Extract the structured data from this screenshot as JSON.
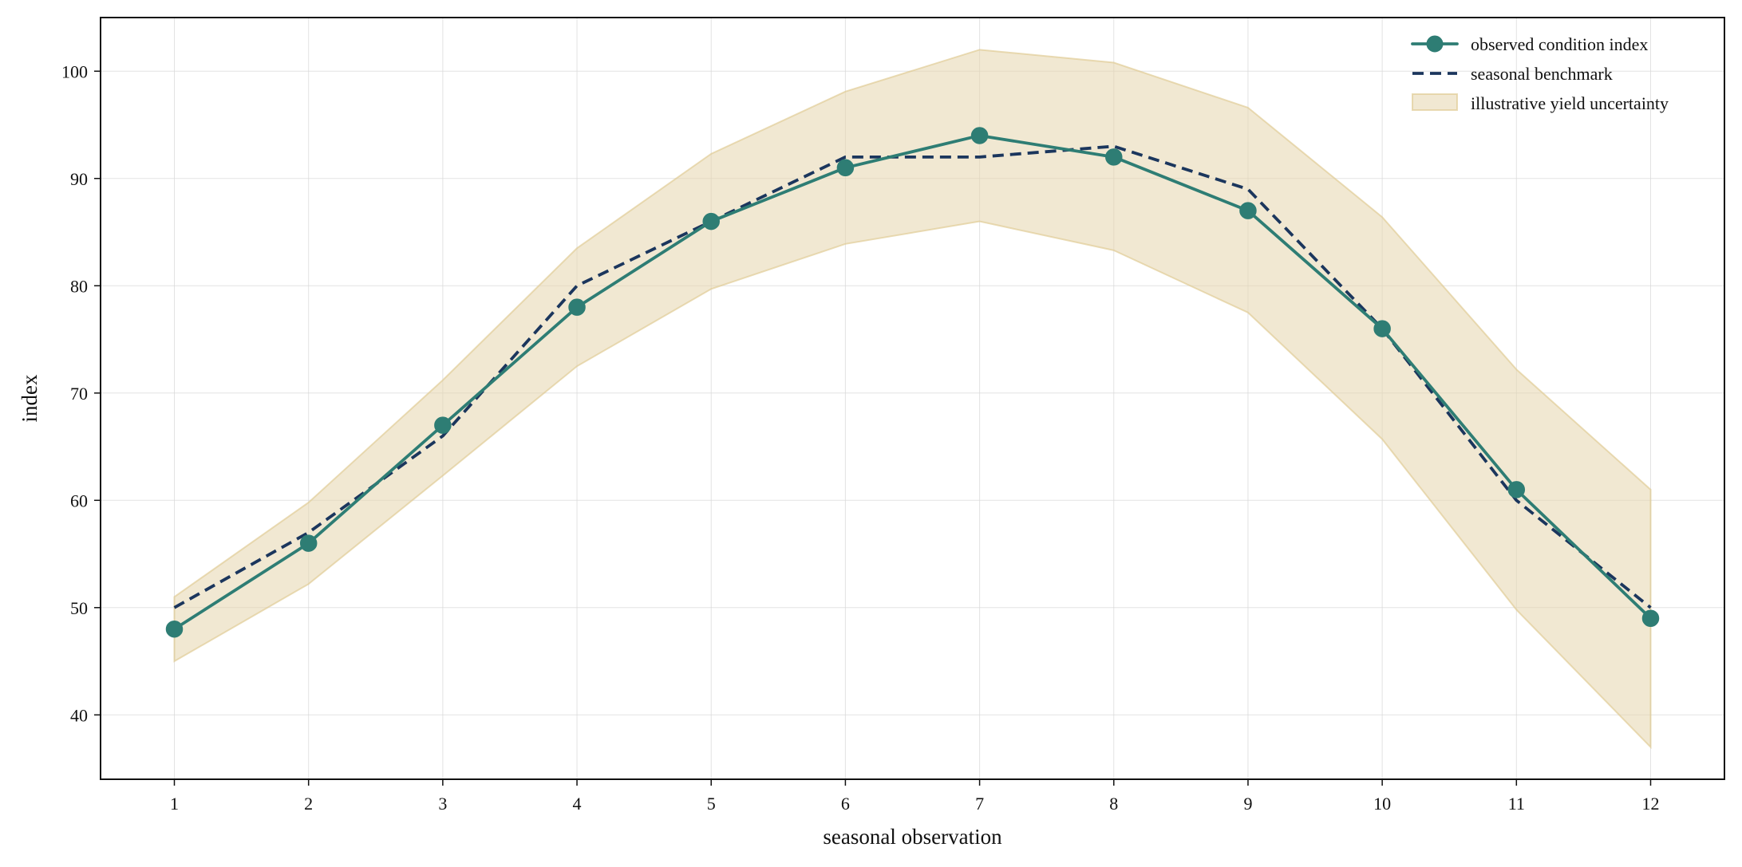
{
  "chart_data": {
    "type": "line",
    "title": "",
    "xlabel": "seasonal observation",
    "ylabel": "index",
    "x": [
      1,
      2,
      3,
      4,
      5,
      6,
      7,
      8,
      9,
      10,
      11,
      12
    ],
    "x_ticks": [
      "1",
      "2",
      "3",
      "4",
      "5",
      "6",
      "7",
      "8",
      "9",
      "10",
      "11",
      "12"
    ],
    "y_ticks": [
      "40",
      "50",
      "60",
      "70",
      "80",
      "90",
      "100"
    ],
    "xlim": [
      0.45,
      12.55
    ],
    "ylim": [
      34,
      105
    ],
    "grid": true,
    "legend_position": "top-right",
    "series": [
      {
        "name": "observed condition index",
        "kind": "line-with-markers",
        "color": "#2e7d74",
        "values": [
          48,
          56,
          67,
          78,
          86,
          91,
          94,
          92,
          87,
          76,
          61,
          49
        ]
      },
      {
        "name": "seasonal benchmark",
        "kind": "dashed-line",
        "color": "#1b365d",
        "values": [
          50,
          57,
          66,
          80,
          86,
          92,
          92,
          93,
          89,
          76,
          60,
          50
        ]
      }
    ],
    "band": {
      "name": "illustrative yield uncertainty",
      "color": "#e6d5ad",
      "lower": [
        45,
        52.2,
        62.3,
        72.5,
        79.7,
        83.9,
        86,
        83.3,
        77.5,
        65.7,
        49.8,
        37
      ],
      "upper": [
        51,
        59.8,
        71.2,
        83.5,
        92.3,
        98.1,
        102,
        100.8,
        96.6,
        86.4,
        72.2,
        61
      ]
    }
  }
}
